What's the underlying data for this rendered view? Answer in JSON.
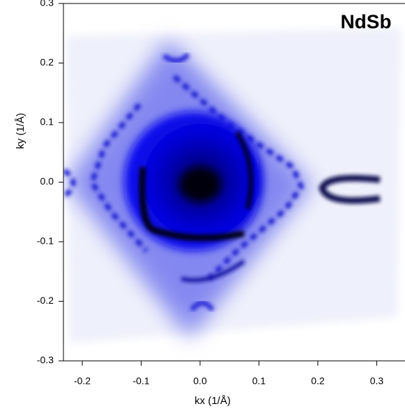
{
  "chart_data": {
    "type": "image",
    "title": "NdSb",
    "x_label": "kx (1/Å)",
    "y_label": "ky (1/Å)",
    "xlim": [
      -0.232,
      0.348
    ],
    "ylim": [
      -0.3,
      0.3
    ],
    "xticks": [
      -0.2,
      -0.1,
      {
        "value": 0,
        "label": "0.0"
      },
      0.1,
      0.2,
      0.3
    ],
    "yticks": [
      -0.3,
      -0.2,
      -0.1,
      {
        "value": 0,
        "label": "0.0"
      },
      0.1,
      0.2,
      0.3
    ]
  }
}
